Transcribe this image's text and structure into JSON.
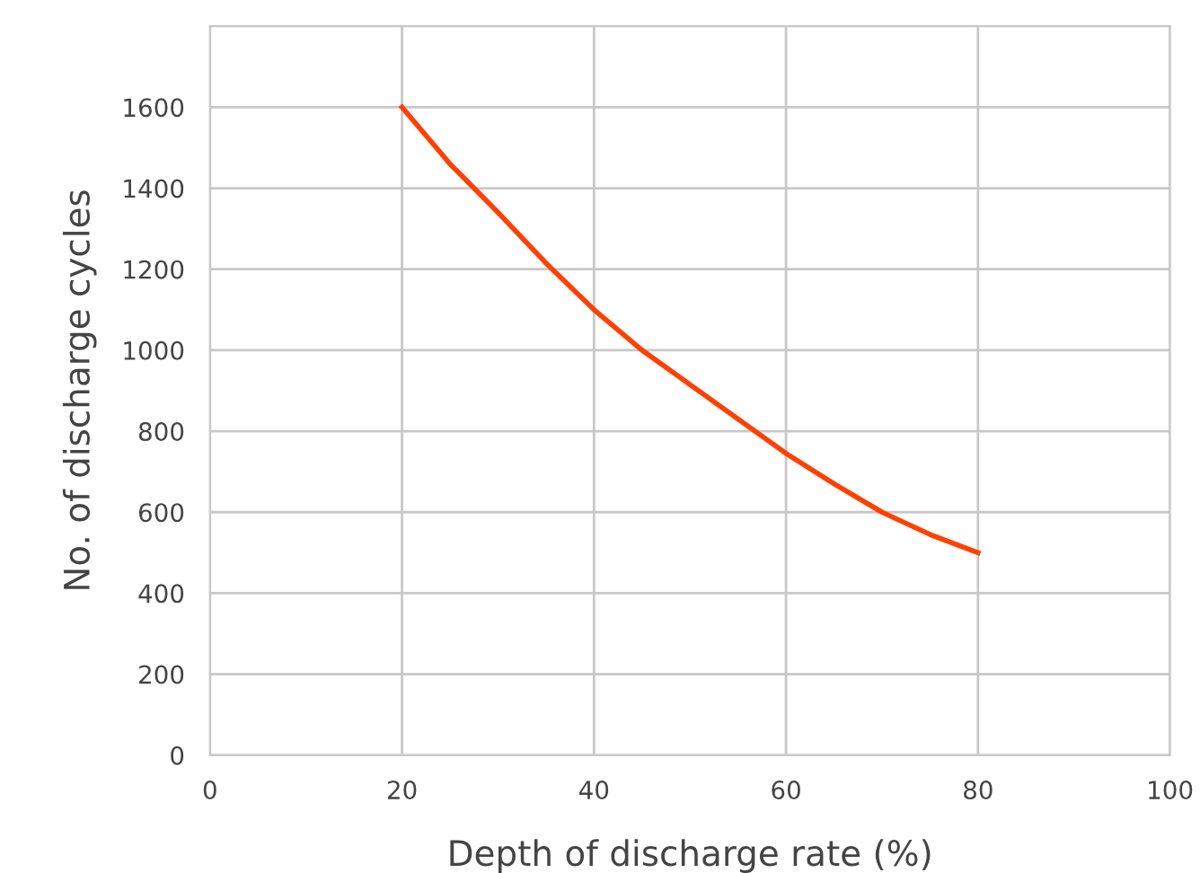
{
  "chart_data": {
    "type": "line",
    "xlabel": "Depth of discharge rate (%)",
    "ylabel": "No. of discharge cycles",
    "x": [
      20,
      25,
      30,
      35,
      40,
      45,
      50,
      55,
      60,
      65,
      70,
      75,
      80
    ],
    "series": [
      {
        "color": "#ff4000",
        "values": [
          1600,
          1460,
          1340,
          1215,
          1100,
          1000,
          915,
          830,
          745,
          670,
          600,
          545,
          500
        ]
      }
    ],
    "xlim": [
      0,
      100
    ],
    "xticks": [
      0,
      20,
      40,
      60,
      80,
      100
    ],
    "ylim": [
      0,
      1800
    ],
    "yticks": [
      0,
      200,
      400,
      600,
      800,
      1000,
      1200,
      1400,
      1600
    ],
    "grid": true,
    "marker": "none",
    "line_style": "solid"
  }
}
